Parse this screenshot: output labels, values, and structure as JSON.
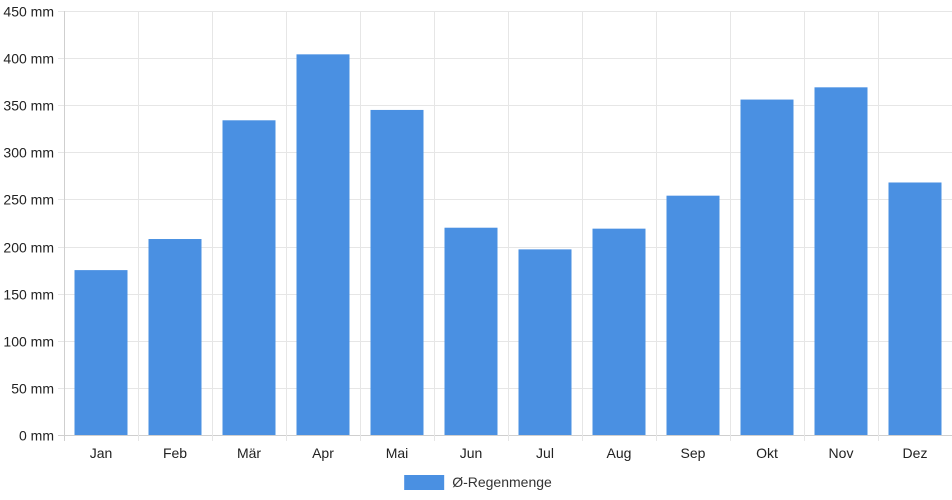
{
  "chart_data": {
    "type": "bar",
    "categories": [
      "Jan",
      "Feb",
      "Mär",
      "Apr",
      "Mai",
      "Jun",
      "Jul",
      "Aug",
      "Sep",
      "Okt",
      "Nov",
      "Dez"
    ],
    "series": [
      {
        "name": "Ø-Regenmenge",
        "values": [
          175,
          208,
          334,
          404,
          345,
          220,
          197,
          219,
          254,
          356,
          369,
          268
        ],
        "color": "#4a90e2"
      }
    ],
    "ylim": [
      0,
      450
    ],
    "y_ticks": [
      "0 mm",
      "50 mm",
      "100 mm",
      "150 mm",
      "200 mm",
      "250 mm",
      "300 mm",
      "350 mm",
      "400 mm",
      "450 mm"
    ],
    "y_tick_values": [
      0,
      50,
      100,
      150,
      200,
      250,
      300,
      350,
      400,
      450
    ],
    "grid": true,
    "legend_position": "bottom-center"
  }
}
